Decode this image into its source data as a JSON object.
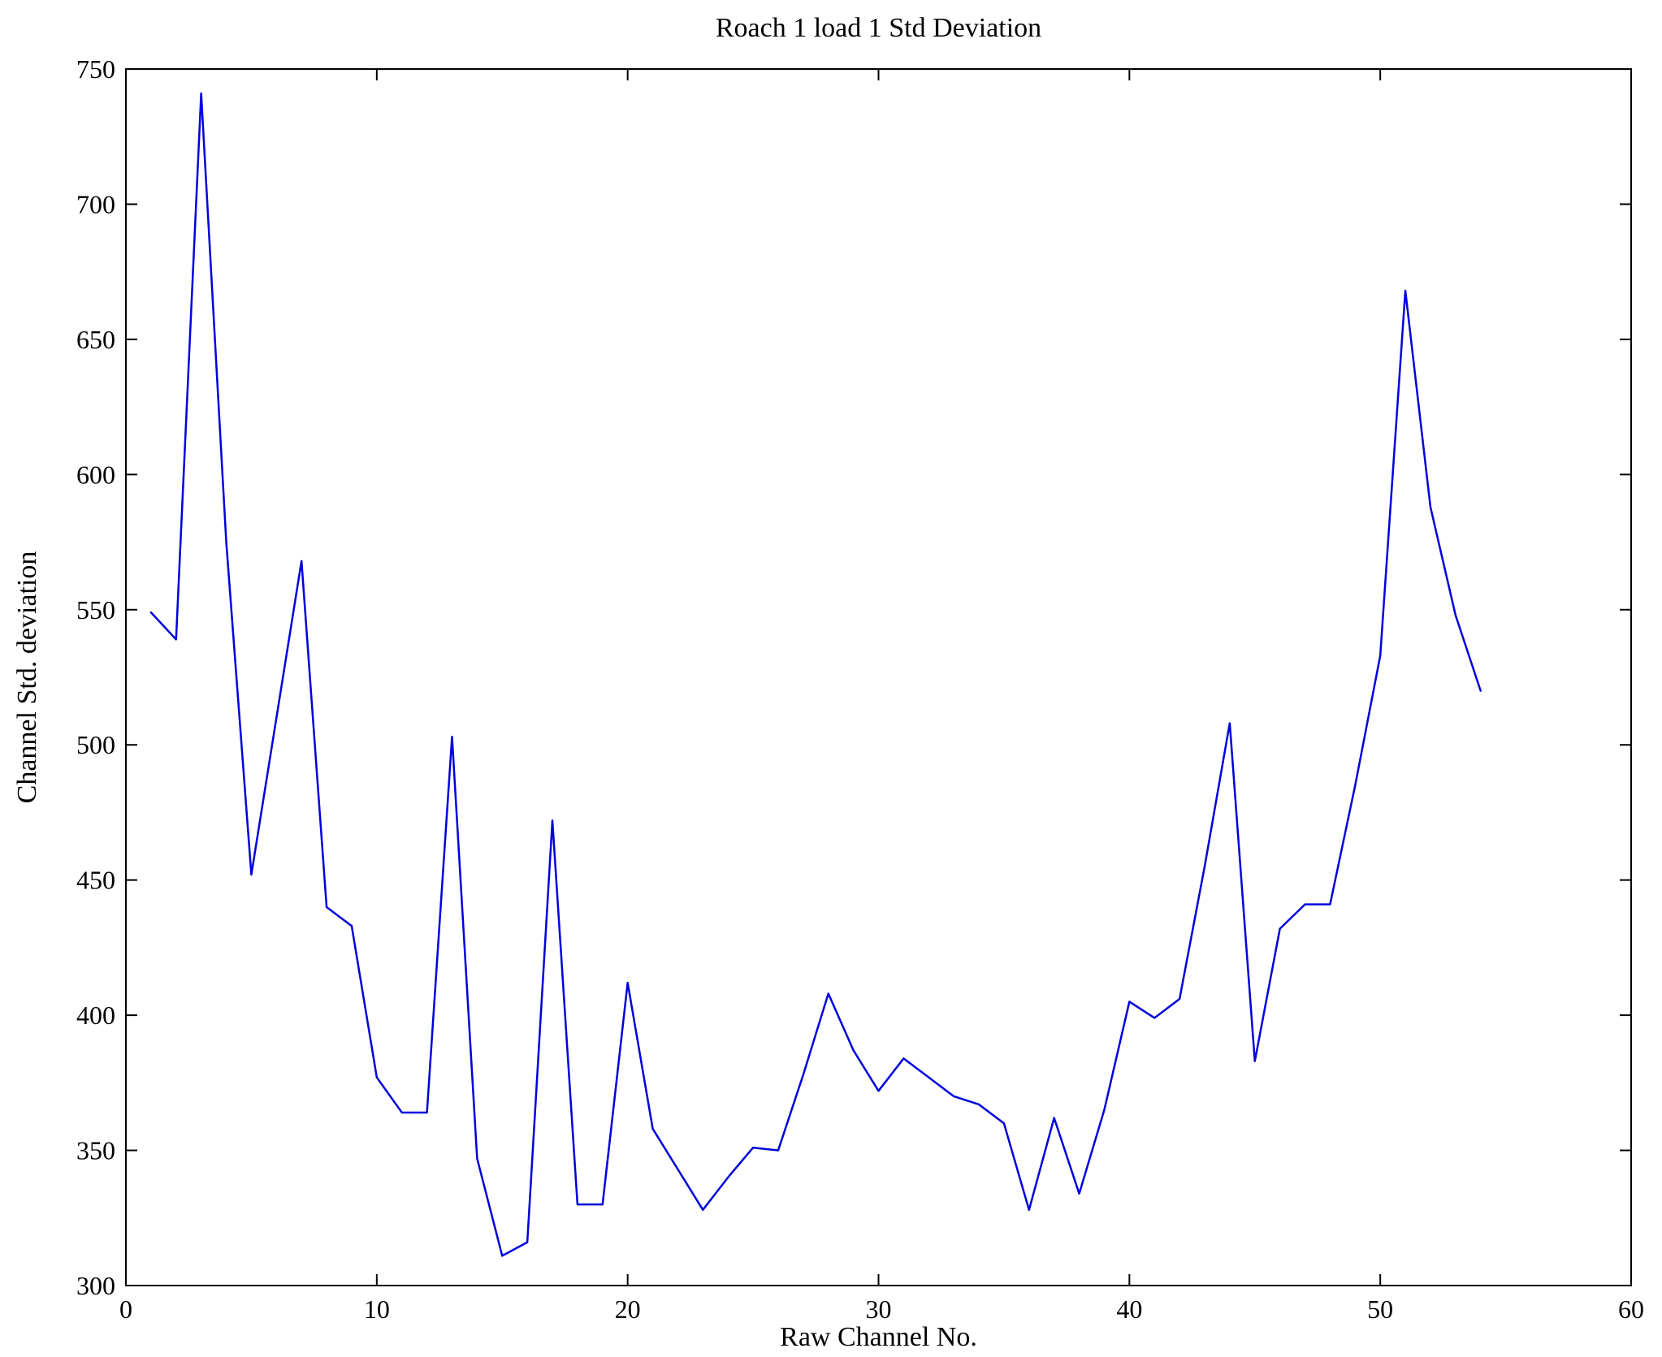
{
  "chart_data": {
    "type": "line",
    "title": "Roach 1 load 1 Std Deviation",
    "xlabel": "Raw Channel No.",
    "ylabel": "Channel Std. deviation",
    "xlim": [
      0,
      60
    ],
    "ylim": [
      300,
      750
    ],
    "x_ticks": [
      0,
      10,
      20,
      30,
      40,
      50,
      60
    ],
    "y_ticks": [
      300,
      350,
      400,
      450,
      500,
      550,
      600,
      650,
      700,
      750
    ],
    "grid": false,
    "legend_position": "none",
    "line_color": "#0000dd",
    "axis_color": "#000000",
    "background_color": "#ffffff",
    "series": [
      {
        "name": "Channel Std. deviation",
        "x": [
          1,
          2,
          3,
          4,
          5,
          6,
          7,
          8,
          9,
          10,
          11,
          12,
          13,
          14,
          15,
          16,
          17,
          18,
          19,
          20,
          21,
          22,
          23,
          24,
          25,
          26,
          27,
          28,
          29,
          30,
          31,
          32,
          33,
          34,
          35,
          36,
          37,
          38,
          39,
          40,
          41,
          42,
          43,
          44,
          45,
          46,
          47,
          48,
          49,
          50,
          51,
          52,
          53,
          54
        ],
        "y": [
          549,
          539,
          741,
          575,
          452,
          510,
          568,
          440,
          433,
          377,
          364,
          364,
          503,
          347,
          311,
          316,
          472,
          330,
          330,
          412,
          358,
          343,
          328,
          340,
          351,
          350,
          378,
          408,
          387,
          372,
          384,
          377,
          370,
          367,
          360,
          328,
          362,
          334,
          365,
          405,
          399,
          406,
          455,
          508,
          383,
          432,
          441,
          441,
          485,
          533,
          668,
          588,
          548,
          520
        ]
      }
    ]
  }
}
